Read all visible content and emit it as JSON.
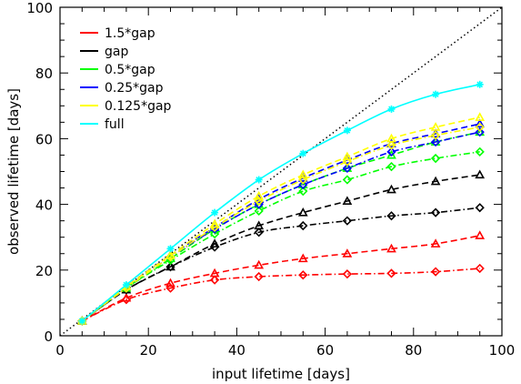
{
  "chart_data": {
    "type": "line",
    "xlabel": "input lifetime [days]",
    "ylabel": "observed lifetime [days]",
    "xlim": [
      0,
      100
    ],
    "ylim": [
      0,
      100
    ],
    "xticks": [
      0,
      20,
      40,
      60,
      80,
      100
    ],
    "yticks": [
      0,
      20,
      40,
      60,
      80,
      100
    ],
    "legend_position": "top-left",
    "x": [
      5,
      15,
      25,
      35,
      45,
      55,
      65,
      75,
      85,
      95
    ],
    "reference_line": {
      "style": "dotted",
      "color": "#000000",
      "from": [
        0,
        0
      ],
      "to": [
        100,
        100
      ]
    },
    "series": [
      {
        "name": "1.5*gap",
        "color": "#ff0000",
        "line_style": "dashed",
        "marker": "triangle",
        "values": [
          4.5,
          11.5,
          16,
          19,
          21.5,
          23.5,
          25,
          26.5,
          28,
          30.5
        ]
      },
      {
        "name": "",
        "color": "#ff0000",
        "line_style": "dashdot",
        "marker": "diamond",
        "values": [
          4.5,
          11,
          14.5,
          17,
          18,
          18.5,
          18.8,
          19,
          19.5,
          20.5
        ]
      },
      {
        "name": "gap",
        "color": "#000000",
        "line_style": "dashed",
        "marker": "triangle",
        "values": [
          4.5,
          14,
          21,
          28,
          33.5,
          37.5,
          41,
          44.5,
          47,
          49
        ]
      },
      {
        "name": "",
        "color": "#000000",
        "line_style": "dashdot",
        "marker": "diamond",
        "values": [
          4.5,
          14,
          21,
          27,
          31.5,
          33.5,
          35,
          36.5,
          37.5,
          39
        ]
      },
      {
        "name": "0.5*gap",
        "color": "#00ff00",
        "line_style": "dashed",
        "marker": "triangle",
        "values": [
          4.5,
          14.5,
          23.5,
          32.5,
          40,
          46,
          51,
          55,
          59,
          62
        ]
      },
      {
        "name": "",
        "color": "#00ff00",
        "line_style": "dashdot",
        "marker": "diamond",
        "values": [
          4.5,
          14.5,
          23,
          31,
          38,
          44,
          47.5,
          51.5,
          54,
          56
        ]
      },
      {
        "name": "0.25*gap",
        "color": "#0000ff",
        "line_style": "dashed",
        "marker": "triangle",
        "values": [
          4.5,
          15,
          24.5,
          33,
          41.5,
          48,
          53.5,
          58.5,
          61.5,
          64.5
        ]
      },
      {
        "name": "",
        "color": "#0000ff",
        "line_style": "dashdot",
        "marker": "diamond",
        "values": [
          4.5,
          14.5,
          24,
          32.5,
          40,
          46,
          51,
          56,
          59,
          62
        ]
      },
      {
        "name": "0.125*gap",
        "color": "#ffff00",
        "line_style": "dashed",
        "marker": "triangle",
        "values": [
          4.5,
          15,
          24.5,
          34,
          42.5,
          49,
          54.5,
          60,
          63.5,
          66.5
        ]
      },
      {
        "name": "",
        "color": "#ffff00",
        "line_style": "dashdot",
        "marker": "diamond",
        "values": [
          4.5,
          14.5,
          24,
          33,
          41,
          47.5,
          53,
          58,
          61,
          63.5
        ]
      },
      {
        "name": "full",
        "color": "#00ffff",
        "line_style": "solid",
        "marker": "asterisk",
        "values": [
          4.5,
          15.5,
          26.5,
          37.5,
          47.5,
          55.5,
          62.5,
          69,
          73.5,
          76.5
        ]
      }
    ]
  }
}
